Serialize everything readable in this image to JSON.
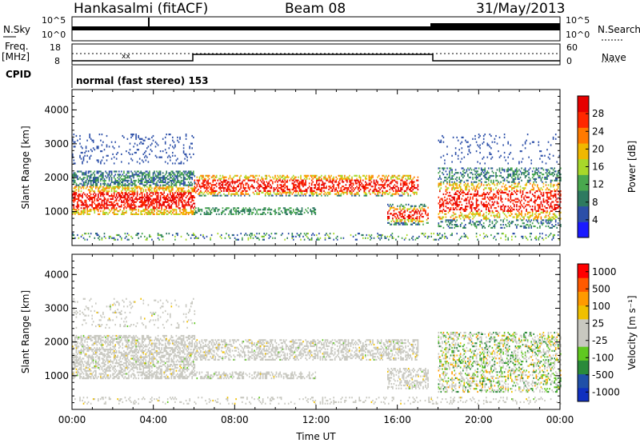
{
  "header": {
    "station": "Hankasalmi (fitACF)",
    "beam": "Beam 08",
    "date": "31/May/2013"
  },
  "side_labels": {
    "nsky": "N.Sky",
    "freq_line1": "Freq.",
    "freq_line2": "[MHz]",
    "cpid": "CPID",
    "nsearch": "N.Search",
    "nave": "Nave"
  },
  "cpid_text": "normal (fast stereo) 153",
  "noise_panel": {
    "left_ticks": [
      "10^5",
      "10^0"
    ],
    "right_ticks": [
      "10^5",
      "10^0"
    ]
  },
  "freq_panel": {
    "left_ticks": [
      "18",
      "8"
    ],
    "right_ticks": [
      "60",
      "0"
    ]
  },
  "colors": {
    "power_scale": [
      "#1a1aff",
      "#2c4fa8",
      "#2e7a60",
      "#49a84e",
      "#a8d82a",
      "#f0b800",
      "#ff7a00",
      "#ff2800",
      "#e60000"
    ],
    "velocity_scale": [
      "#ff0000",
      "#ff5a00",
      "#ff9a00",
      "#f0c000",
      "#c8c8c0",
      "#c8c8c0",
      "#60c820",
      "#2a8a3a",
      "#2050a8",
      "#1030c0"
    ]
  },
  "chart_data": [
    {
      "type": "heatmap",
      "title": "Power",
      "xlabel": "Time UT",
      "ylabel": "Slant Range [km]",
      "x_ticks": [
        "00:00",
        "04:00",
        "08:00",
        "12:00",
        "16:00",
        "20:00",
        "00:00"
      ],
      "y_ticks": [
        "1000",
        "2000",
        "3000",
        "4000"
      ],
      "ylim": [
        0,
        4600
      ],
      "colorbar_label": "Power [dB]",
      "colorbar_ticks": [
        "4",
        "8",
        "12",
        "16",
        "20",
        "24",
        "28"
      ],
      "colorbar_range": [
        0,
        32
      ],
      "echo_regions": [
        {
          "t_start": 0.0,
          "t_end": 6.0,
          "range_min": 900,
          "range_max": 2200,
          "level": "high"
        },
        {
          "t_start": 6.0,
          "t_end": 17.0,
          "range_min": 1500,
          "range_max": 2000,
          "level": "medium"
        },
        {
          "t_start": 6.0,
          "t_end": 12.0,
          "range_min": 900,
          "range_max": 1100,
          "level": "medium"
        },
        {
          "t_start": 18.0,
          "t_end": 24.0,
          "range_min": 500,
          "range_max": 2200,
          "level": "high"
        }
      ]
    },
    {
      "type": "heatmap",
      "title": "Velocity",
      "xlabel": "Time UT",
      "ylabel": "Slant Range [km]",
      "x_ticks": [
        "00:00",
        "04:00",
        "08:00",
        "12:00",
        "16:00",
        "20:00",
        "00:00"
      ],
      "y_ticks": [
        "1000",
        "2000",
        "3000",
        "4000"
      ],
      "ylim": [
        0,
        4600
      ],
      "colorbar_label": "Velocity [m s⁻¹]",
      "colorbar_ticks": [
        "1000",
        "500",
        "100",
        "25",
        "-25",
        "-100",
        "-500",
        "-1000"
      ]
    }
  ]
}
